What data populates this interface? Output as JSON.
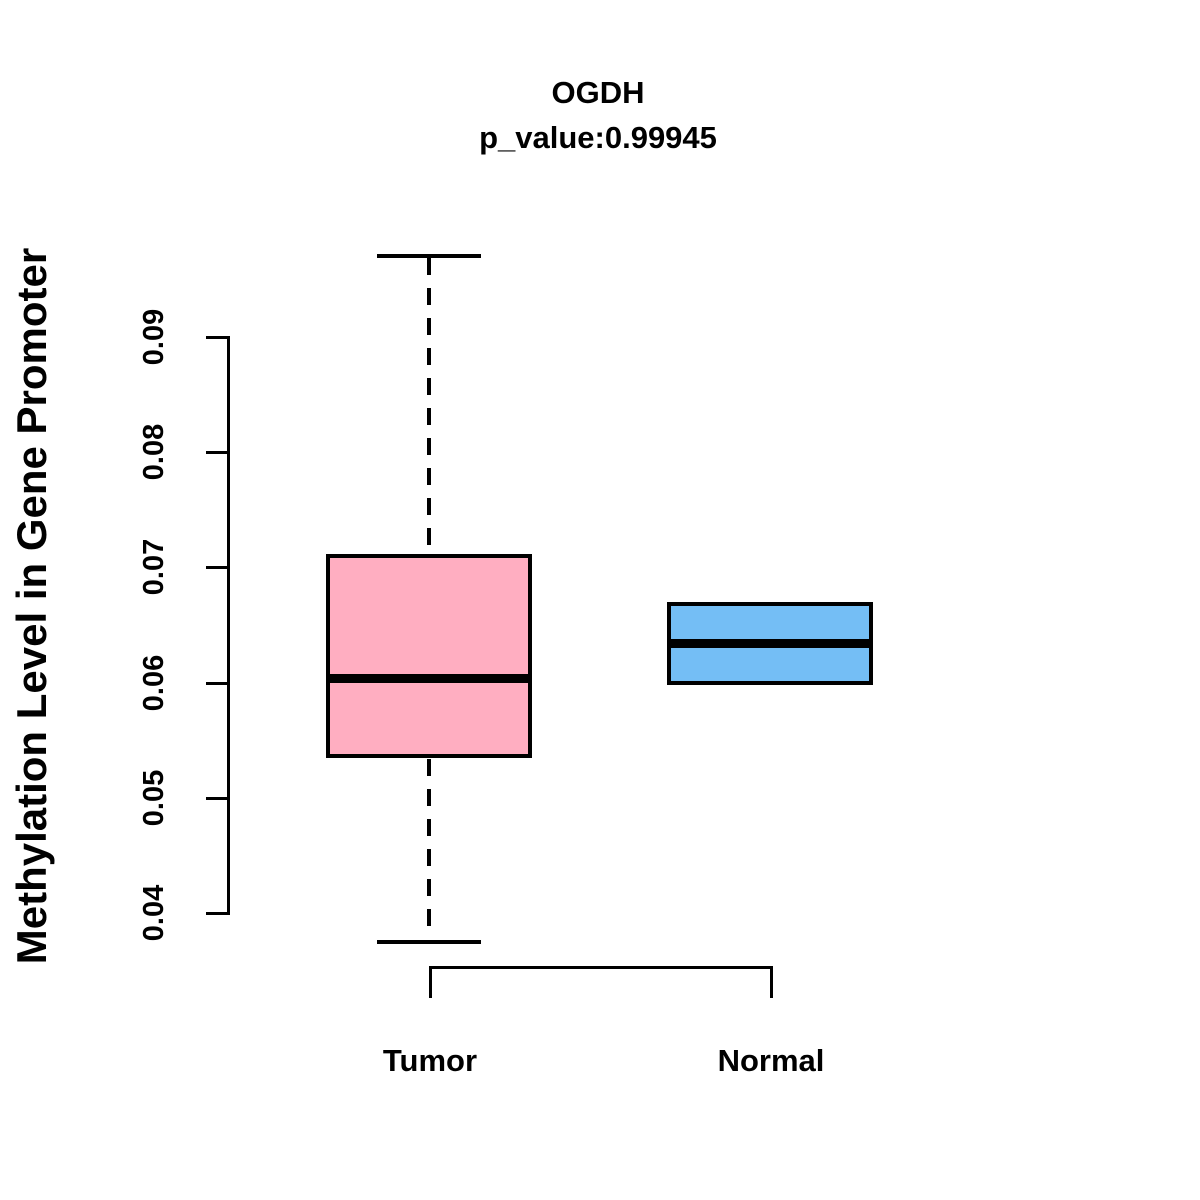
{
  "chart_data": {
    "type": "boxplot",
    "title": "OGDH",
    "subtitle": "p_value:0.99945",
    "p_value": 0.99945,
    "ylabel": "Methylation Level in Gene Promoter",
    "xlabel": "",
    "yticks": [
      0.04,
      0.05,
      0.06,
      0.07,
      0.08,
      0.09
    ],
    "ytick_labels": [
      "0.04",
      "0.05",
      "0.06",
      "0.07",
      "0.08",
      "0.09"
    ],
    "ylim": [
      0.0375,
      0.097
    ],
    "grid": false,
    "legend": "none",
    "categories": [
      "Tumor",
      "Normal"
    ],
    "groups": [
      {
        "label": "Tumor",
        "fill_color": "#FFAEC1",
        "lower_whisker": 0.0375,
        "q1": 0.0535,
        "median": 0.0604,
        "q3": 0.0712,
        "upper_whisker": 0.097,
        "whiskers_visible": true
      },
      {
        "label": "Normal",
        "fill_color": "#74BEF5",
        "lower_whisker": null,
        "q1": 0.0598,
        "median": 0.0634,
        "q3": 0.067,
        "upper_whisker": null,
        "whiskers_visible": false
      }
    ],
    "comparison_bracket": {
      "from": "Tumor",
      "to": "Normal"
    }
  },
  "colors": {
    "stroke": "#000000",
    "background": "#FFFFFF",
    "tumor_fill": "#FFAEC1",
    "normal_fill": "#74BEF5"
  }
}
